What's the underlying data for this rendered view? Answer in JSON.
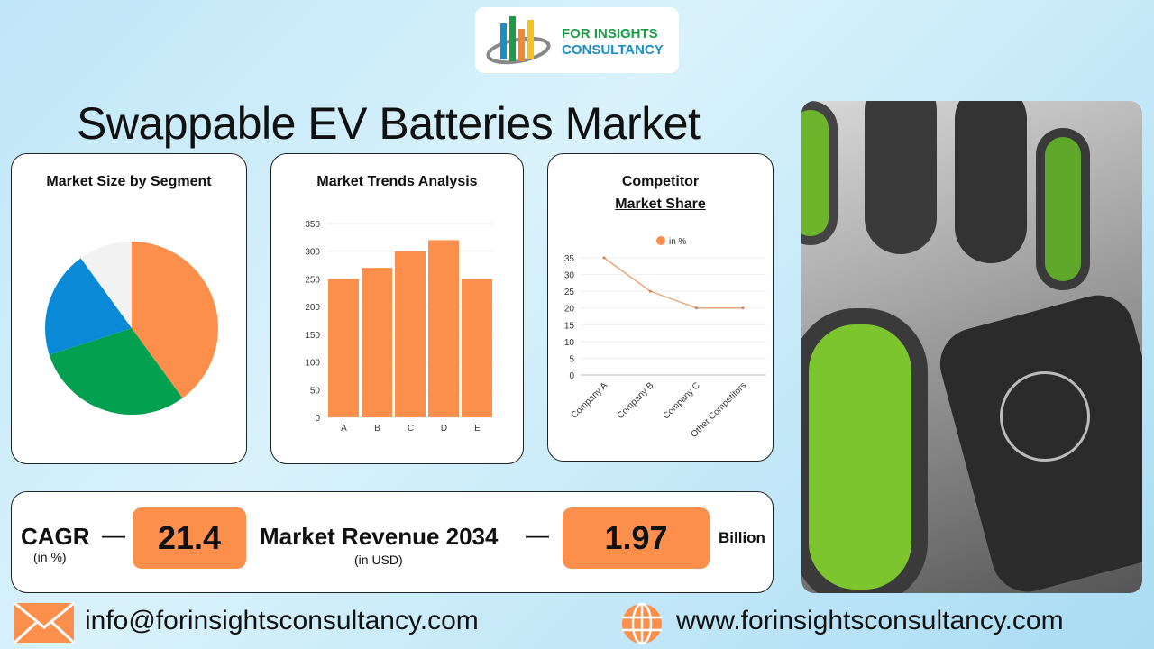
{
  "logo": {
    "line1": "FOR INSIGHTS",
    "line2": "CONSULTANCY"
  },
  "title": "Swappable EV Batteries Market",
  "colors": {
    "accent": "#fd8f4c",
    "green": "#03a04f",
    "blue": "#0a8ad6",
    "light": "#f2f2f2"
  },
  "chart_data": [
    {
      "type": "pie",
      "title": "Market Size by Segment",
      "values": [
        40,
        30,
        20,
        10
      ],
      "colors": [
        "#fd8f4c",
        "#03a04f",
        "#0a8ad6",
        "#f2f2f2"
      ]
    },
    {
      "type": "bar",
      "title": "Market Trends Analysis",
      "categories": [
        "A",
        "B",
        "C",
        "D",
        "E"
      ],
      "values": [
        250,
        270,
        300,
        320,
        250
      ],
      "ylim": [
        0,
        350
      ],
      "yticks": [
        0,
        50,
        100,
        150,
        200,
        250,
        300,
        350
      ],
      "grid": true
    },
    {
      "type": "line",
      "title_line1": "Competitor",
      "title_line2": "Market Share",
      "categories": [
        "Company A",
        "Company B",
        "Company C",
        "Other Competitors"
      ],
      "series": [
        {
          "name": "in %",
          "values": [
            35,
            25,
            20,
            20
          ]
        }
      ],
      "ylim": [
        0,
        35
      ],
      "yticks": [
        0,
        5,
        10,
        15,
        20,
        25,
        30,
        35
      ],
      "legend": "top",
      "grid": true
    }
  ],
  "stats": {
    "cagr_label": "CAGR",
    "cagr_unit": "(in %)",
    "dash": "—",
    "cagr_value": "21.4",
    "revenue_label": "Market Revenue 2034",
    "revenue_unit": "(in USD)",
    "revenue_value": "1.97",
    "revenue_suffix": "Billion"
  },
  "footer": {
    "email": "info@forinsightsconsultancy.com",
    "website": "www.forinsightsconsultancy.com",
    "email_icon": "envelope-icon",
    "web_icon": "globe-icon"
  }
}
